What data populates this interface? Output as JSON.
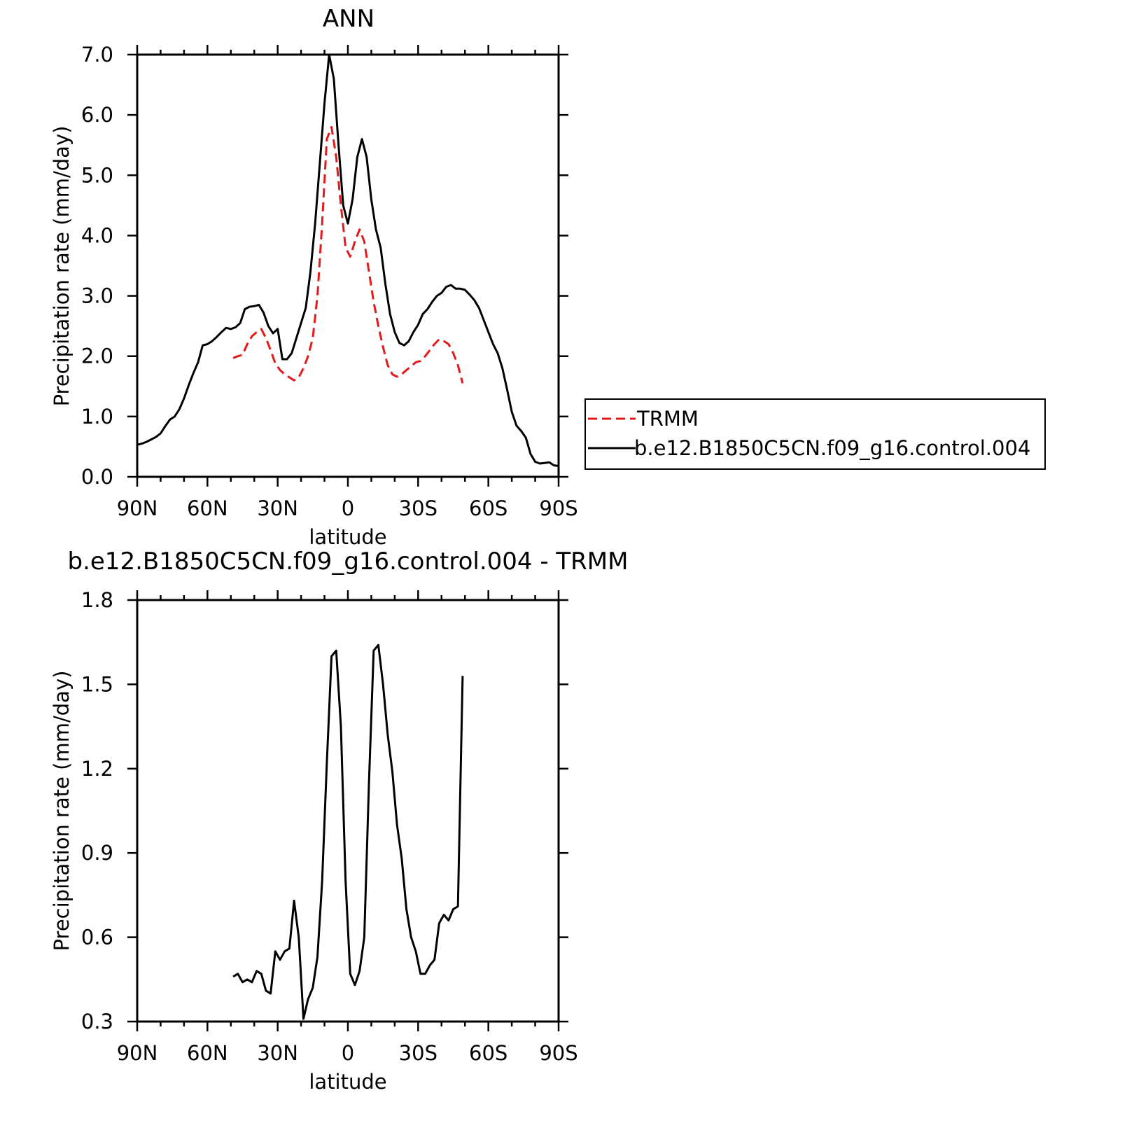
{
  "chart_data": [
    {
      "type": "line",
      "title": "ANN",
      "xlabel": "latitude",
      "ylabel": "Precipitation rate (mm/day)",
      "xlim": [
        90,
        -90
      ],
      "ylim": [
        0,
        7
      ],
      "x_ticks": [
        90,
        60,
        30,
        0,
        -30,
        -60,
        -90
      ],
      "x_tick_labels": [
        "90N",
        "60N",
        "30N",
        "0",
        "30S",
        "60S",
        "90S"
      ],
      "y_ticks": [
        0,
        1,
        2,
        3,
        4,
        5,
        6,
        7
      ],
      "y_tick_labels": [
        "0.0",
        "1.0",
        "2.0",
        "3.0",
        "4.0",
        "5.0",
        "6.0",
        "7.0"
      ],
      "grid": false,
      "legend_position": "right",
      "series": [
        {
          "name": "TRMM",
          "color": "#e31a1c",
          "dash": "dashed",
          "x": [
            49,
            47,
            45,
            43,
            41,
            39,
            37,
            35,
            33,
            31,
            29,
            27,
            25,
            23,
            21,
            19,
            17,
            15,
            13,
            11,
            9,
            7,
            5,
            3,
            1,
            -1,
            -3,
            -5,
            -7,
            -9,
            -11,
            -13,
            -15,
            -17,
            -19,
            -21,
            -23,
            -25,
            -27,
            -29,
            -31,
            -33,
            -35,
            -37,
            -39,
            -41,
            -43,
            -45,
            -47,
            -49
          ],
          "y": [
            1.97,
            2.0,
            2.02,
            2.2,
            2.33,
            2.4,
            2.45,
            2.3,
            2.1,
            1.88,
            1.77,
            1.7,
            1.65,
            1.6,
            1.65,
            1.8,
            2.0,
            2.3,
            3.0,
            4.2,
            5.6,
            5.8,
            5.3,
            4.5,
            3.8,
            3.65,
            3.9,
            4.1,
            3.9,
            3.4,
            2.9,
            2.5,
            2.15,
            1.85,
            1.7,
            1.66,
            1.7,
            1.77,
            1.83,
            1.9,
            1.92,
            2.0,
            2.1,
            2.2,
            2.28,
            2.25,
            2.2,
            2.05,
            1.85,
            1.55
          ]
        },
        {
          "name": "b.e12.B1850C5CN.f09_g16.control.004",
          "color": "#000000",
          "dash": "solid",
          "x": [
            90,
            88,
            86,
            84,
            82,
            80,
            78,
            76,
            74,
            72,
            70,
            68,
            66,
            64,
            62,
            60,
            58,
            56,
            54,
            52,
            50,
            48,
            46,
            44,
            42,
            40,
            38,
            36,
            34,
            32,
            30,
            28,
            26,
            24,
            22,
            20,
            18,
            16,
            14,
            12,
            10,
            8,
            6,
            4,
            2,
            0,
            -2,
            -4,
            -6,
            -8,
            -10,
            -12,
            -14,
            -16,
            -18,
            -20,
            -22,
            -24,
            -26,
            -28,
            -30,
            -32,
            -34,
            -36,
            -38,
            -40,
            -42,
            -44,
            -46,
            -48,
            -50,
            -52,
            -54,
            -56,
            -58,
            -60,
            -62,
            -64,
            -66,
            -68,
            -70,
            -72,
            -74,
            -76,
            -78,
            -80,
            -82,
            -84,
            -86,
            -88,
            -90
          ],
          "y": [
            0.53,
            0.55,
            0.58,
            0.62,
            0.66,
            0.72,
            0.84,
            0.95,
            1.0,
            1.12,
            1.3,
            1.52,
            1.72,
            1.9,
            2.18,
            2.2,
            2.25,
            2.32,
            2.4,
            2.47,
            2.45,
            2.48,
            2.55,
            2.78,
            2.82,
            2.83,
            2.85,
            2.72,
            2.5,
            2.38,
            2.45,
            1.95,
            1.95,
            2.05,
            2.3,
            2.55,
            2.8,
            3.4,
            4.2,
            5.2,
            6.2,
            7.0,
            6.6,
            5.5,
            4.5,
            4.2,
            4.6,
            5.3,
            5.6,
            5.3,
            4.6,
            4.1,
            3.8,
            3.2,
            2.7,
            2.4,
            2.22,
            2.18,
            2.25,
            2.4,
            2.52,
            2.7,
            2.78,
            2.9,
            3.0,
            3.05,
            3.15,
            3.18,
            3.12,
            3.12,
            3.1,
            3.02,
            2.93,
            2.8,
            2.6,
            2.4,
            2.2,
            2.05,
            1.8,
            1.45,
            1.08,
            0.85,
            0.76,
            0.65,
            0.38,
            0.25,
            0.22,
            0.23,
            0.24,
            0.19,
            0.18
          ]
        }
      ]
    },
    {
      "type": "line",
      "title": "b.e12.B1850C5CN.f09_g16.control.004 - TRMM",
      "xlabel": "latitude",
      "ylabel": "Precipitation rate (mm/day)",
      "xlim": [
        90,
        -90
      ],
      "ylim": [
        0.3,
        1.8
      ],
      "x_ticks": [
        90,
        60,
        30,
        0,
        -30,
        -60,
        -90
      ],
      "x_tick_labels": [
        "90N",
        "60N",
        "30N",
        "0",
        "30S",
        "60S",
        "90S"
      ],
      "y_ticks": [
        0.3,
        0.6,
        0.9,
        1.2,
        1.5,
        1.8
      ],
      "y_tick_labels": [
        "0.3",
        "0.6",
        "0.9",
        "1.2",
        "1.5",
        "1.8"
      ],
      "grid": false,
      "series": [
        {
          "color": "#000000",
          "dash": "solid",
          "x": [
            49,
            47,
            45,
            43,
            41,
            39,
            37,
            35,
            33,
            31,
            29,
            27,
            25,
            23,
            21,
            19,
            17,
            15,
            13,
            11,
            9,
            7,
            5,
            3,
            1,
            -1,
            -3,
            -5,
            -7,
            -9,
            -11,
            -13,
            -15,
            -17,
            -19,
            -21,
            -23,
            -25,
            -27,
            -29,
            -31,
            -33,
            -35,
            -37,
            -39,
            -41,
            -43,
            -45,
            -47,
            -49
          ],
          "y": [
            0.46,
            0.47,
            0.44,
            0.45,
            0.44,
            0.48,
            0.47,
            0.41,
            0.4,
            0.55,
            0.52,
            0.55,
            0.56,
            0.73,
            0.6,
            0.31,
            0.38,
            0.42,
            0.53,
            0.8,
            1.22,
            1.6,
            1.62,
            1.35,
            0.8,
            0.47,
            0.43,
            0.48,
            0.6,
            1.15,
            1.62,
            1.64,
            1.5,
            1.32,
            1.19,
            1.0,
            0.88,
            0.7,
            0.6,
            0.55,
            0.47,
            0.47,
            0.5,
            0.52,
            0.65,
            0.68,
            0.66,
            0.7,
            0.71,
            1.53
          ]
        }
      ]
    }
  ]
}
